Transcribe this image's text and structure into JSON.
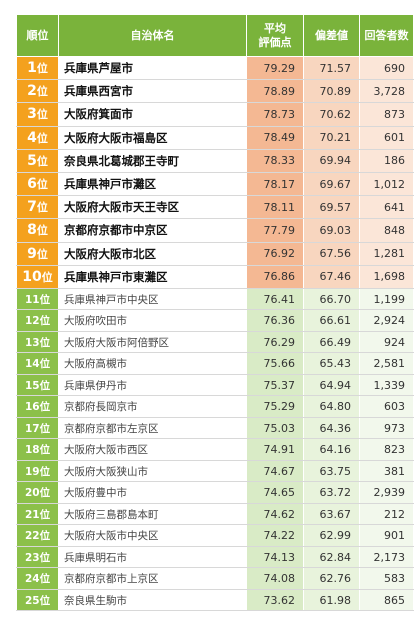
{
  "headers": {
    "rank": "順位",
    "name": "自治体名",
    "avg_line1": "平均",
    "avg_line2": "評価点",
    "deviation": "偏差値",
    "respondents": "回答者数"
  },
  "rank_suffix": "位",
  "rows": [
    {
      "rank": "1",
      "name": "兵庫県芦屋市",
      "avg": "79.29",
      "dev": "71.57",
      "resp": "690"
    },
    {
      "rank": "2",
      "name": "兵庫県西宮市",
      "avg": "78.89",
      "dev": "70.89",
      "resp": "3,728"
    },
    {
      "rank": "3",
      "name": "大阪府箕面市",
      "avg": "78.73",
      "dev": "70.62",
      "resp": "873"
    },
    {
      "rank": "4",
      "name": "大阪府大阪市福島区",
      "avg": "78.49",
      "dev": "70.21",
      "resp": "601"
    },
    {
      "rank": "5",
      "name": "奈良県北葛城郡王寺町",
      "avg": "78.33",
      "dev": "69.94",
      "resp": "186"
    },
    {
      "rank": "6",
      "name": "兵庫県神戸市灘区",
      "avg": "78.17",
      "dev": "69.67",
      "resp": "1,012"
    },
    {
      "rank": "7",
      "name": "大阪府大阪市天王寺区",
      "avg": "78.11",
      "dev": "69.57",
      "resp": "641"
    },
    {
      "rank": "8",
      "name": "京都府京都市中京区",
      "avg": "77.79",
      "dev": "69.03",
      "resp": "848"
    },
    {
      "rank": "9",
      "name": "大阪府大阪市北区",
      "avg": "76.92",
      "dev": "67.56",
      "resp": "1,281"
    },
    {
      "rank": "10",
      "name": "兵庫県神戸市東灘区",
      "avg": "76.86",
      "dev": "67.46",
      "resp": "1,698"
    },
    {
      "rank": "11",
      "name": "兵庫県神戸市中央区",
      "avg": "76.41",
      "dev": "66.70",
      "resp": "1,199"
    },
    {
      "rank": "12",
      "name": "大阪府吹田市",
      "avg": "76.36",
      "dev": "66.61",
      "resp": "2,924"
    },
    {
      "rank": "13",
      "name": "大阪府大阪市阿倍野区",
      "avg": "76.29",
      "dev": "66.49",
      "resp": "924"
    },
    {
      "rank": "14",
      "name": "大阪府高槻市",
      "avg": "75.66",
      "dev": "65.43",
      "resp": "2,581"
    },
    {
      "rank": "15",
      "name": "兵庫県伊丹市",
      "avg": "75.37",
      "dev": "64.94",
      "resp": "1,339"
    },
    {
      "rank": "16",
      "name": "京都府長岡京市",
      "avg": "75.29",
      "dev": "64.80",
      "resp": "603"
    },
    {
      "rank": "17",
      "name": "京都府京都市左京区",
      "avg": "75.03",
      "dev": "64.36",
      "resp": "973"
    },
    {
      "rank": "18",
      "name": "大阪府大阪市西区",
      "avg": "74.91",
      "dev": "64.16",
      "resp": "823"
    },
    {
      "rank": "19",
      "name": "大阪府大阪狭山市",
      "avg": "74.67",
      "dev": "63.75",
      "resp": "381"
    },
    {
      "rank": "20",
      "name": "大阪府豊中市",
      "avg": "74.65",
      "dev": "63.72",
      "resp": "2,939"
    },
    {
      "rank": "21",
      "name": "大阪府三島郡島本町",
      "avg": "74.62",
      "dev": "63.67",
      "resp": "212"
    },
    {
      "rank": "22",
      "name": "大阪府大阪市中央区",
      "avg": "74.22",
      "dev": "62.99",
      "resp": "901"
    },
    {
      "rank": "23",
      "name": "兵庫県明石市",
      "avg": "74.13",
      "dev": "62.84",
      "resp": "2,173"
    },
    {
      "rank": "24",
      "name": "京都府京都市上京区",
      "avg": "74.08",
      "dev": "62.76",
      "resp": "583"
    },
    {
      "rank": "25",
      "name": "奈良県生駒市",
      "avg": "73.62",
      "dev": "61.98",
      "resp": "865"
    }
  ],
  "top_count": 10,
  "colors": {
    "header_green": "#7ab33b",
    "top_rank_orange": "#f4a11e",
    "rest_rank_green": "#8cc04a"
  }
}
